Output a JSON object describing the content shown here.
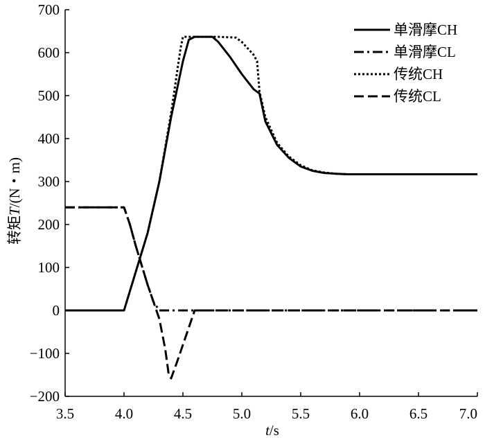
{
  "chart_data": {
    "type": "line",
    "xlabel_var": "t",
    "xlabel_unit": "/s",
    "ylabel_prefix": "转矩",
    "ylabel_var": "T",
    "ylabel_unit": "/(N・m)",
    "xlim": [
      3.5,
      7.0
    ],
    "ylim": [
      -200,
      700
    ],
    "xticks": [
      "3.5",
      "4.0",
      "4.5",
      "5.0",
      "5.5",
      "6.0",
      "6.5",
      "7.0"
    ],
    "yticks": [
      "700",
      "600",
      "500",
      "400",
      "300",
      "200",
      "100",
      "0",
      "−100",
      "−200"
    ],
    "grid": false,
    "legend_position": "top-right",
    "series": [
      {
        "name": "单滑摩CH",
        "style": "solid",
        "x": [
          3.5,
          4.0,
          4.1,
          4.2,
          4.3,
          4.4,
          4.5,
          4.55,
          4.6,
          4.7,
          4.75,
          4.8,
          4.9,
          5.0,
          5.1,
          5.15,
          5.2,
          5.3,
          5.4,
          5.5,
          5.6,
          5.7,
          5.8,
          5.9,
          6.0,
          6.5,
          7.0
        ],
        "y": [
          0,
          0,
          90,
          180,
          300,
          450,
          580,
          630,
          637,
          637,
          637,
          625,
          590,
          550,
          515,
          505,
          440,
          385,
          355,
          335,
          325,
          320,
          318,
          317,
          317,
          317,
          317
        ]
      },
      {
        "name": "单滑摩CL",
        "style": "dashdot",
        "x": [
          3.5,
          4.0,
          4.05,
          4.1,
          4.2,
          4.25,
          4.3,
          4.5,
          5.0,
          6.0,
          7.0
        ],
        "y": [
          240,
          240,
          200,
          150,
          60,
          20,
          0,
          0,
          0,
          0,
          0
        ]
      },
      {
        "name": "传统CH",
        "style": "dotted",
        "x": [
          3.5,
          4.0,
          4.1,
          4.2,
          4.3,
          4.4,
          4.48,
          4.5,
          4.6,
          4.8,
          4.95,
          5.0,
          5.05,
          5.1,
          5.13,
          5.15,
          5.2,
          5.3,
          5.4,
          5.5,
          5.6,
          5.7,
          5.8,
          5.9,
          6.0,
          6.5,
          7.0
        ],
        "y": [
          0,
          0,
          90,
          180,
          300,
          460,
          610,
          637,
          637,
          637,
          635,
          625,
          610,
          595,
          580,
          510,
          450,
          390,
          358,
          338,
          326,
          321,
          318,
          317,
          317,
          317,
          317
        ]
      },
      {
        "name": "传统CL",
        "style": "dashed",
        "x": [
          3.5,
          4.0,
          4.05,
          4.1,
          4.2,
          4.25,
          4.3,
          4.35,
          4.38,
          4.4,
          4.45,
          4.5,
          4.55,
          4.6,
          5.0,
          6.0,
          7.0
        ],
        "y": [
          240,
          240,
          200,
          150,
          60,
          20,
          -20,
          -90,
          -150,
          -158,
          -120,
          -80,
          -40,
          0,
          0,
          0,
          0
        ]
      }
    ]
  }
}
